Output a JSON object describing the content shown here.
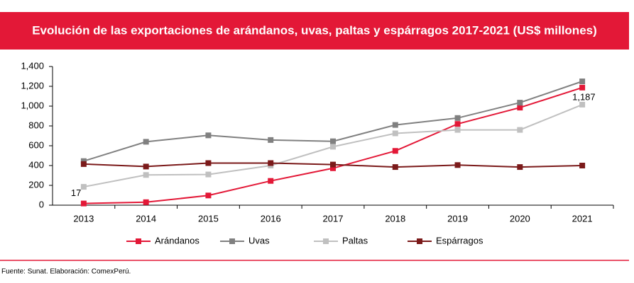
{
  "chart_data": {
    "type": "line",
    "title": "Evolución de las exportaciones de arándanos, uvas, paltas y espárragos 2017-2021 (US$ millones)",
    "source": "Fuente: Sunat. Elaboración: ComexPerú.",
    "categories": [
      "2013",
      "2014",
      "2015",
      "2016",
      "2017",
      "2018",
      "2019",
      "2020",
      "2021"
    ],
    "series": [
      {
        "name": "Arándanos",
        "color": "#e31837",
        "values": [
          17,
          30,
          98,
          245,
          373,
          548,
          820,
          985,
          1187
        ],
        "value_labels": [
          "17",
          null,
          null,
          null,
          null,
          null,
          null,
          null,
          "1,187"
        ]
      },
      {
        "name": "Uvas",
        "color": "#808080",
        "values": [
          445,
          640,
          705,
          658,
          645,
          810,
          880,
          1035,
          1250
        ]
      },
      {
        "name": "Paltas",
        "color": "#c0c0c0",
        "values": [
          185,
          305,
          310,
          400,
          590,
          725,
          760,
          760,
          1015
        ]
      },
      {
        "name": "Espárragos",
        "color": "#7b1a1a",
        "values": [
          415,
          390,
          425,
          425,
          410,
          385,
          405,
          385,
          400
        ]
      }
    ],
    "ylim": [
      0,
      1400
    ],
    "yticks": [
      0,
      200,
      400,
      600,
      800,
      {
        "value": 1000,
        "label": "1,000"
      },
      {
        "value": 1200,
        "label": "1,200"
      },
      {
        "value": 1400,
        "label": "1,400"
      }
    ],
    "grid": false,
    "legend": "bottom"
  }
}
